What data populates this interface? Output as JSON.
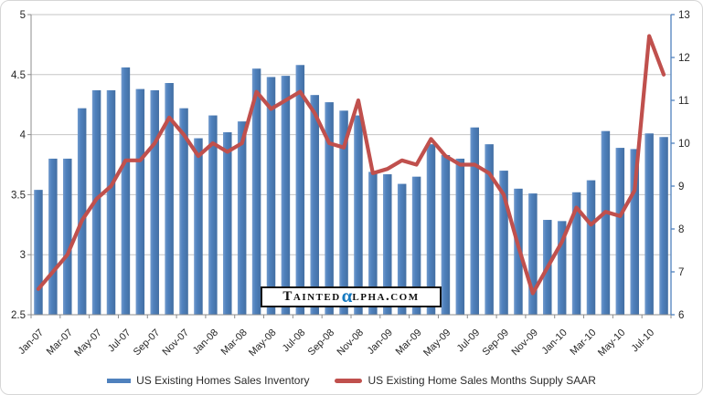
{
  "watermark": {
    "prefix": "Tainted",
    "alpha": "α",
    "suffix": "lpha.com"
  },
  "chart_data": {
    "type": "bar",
    "title": "",
    "xlabel": "",
    "ylabel": "",
    "grid": true,
    "legend_position": "bottom",
    "categories": [
      "Jan-07",
      "Feb-07",
      "Mar-07",
      "Apr-07",
      "May-07",
      "Jun-07",
      "Jul-07",
      "Aug-07",
      "Sep-07",
      "Oct-07",
      "Nov-07",
      "Dec-07",
      "Jan-08",
      "Feb-08",
      "Mar-08",
      "Apr-08",
      "May-08",
      "Jun-08",
      "Jul-08",
      "Aug-08",
      "Sep-08",
      "Oct-08",
      "Nov-08",
      "Dec-08",
      "Jan-09",
      "Feb-09",
      "Mar-09",
      "Apr-09",
      "May-09",
      "Jun-09",
      "Jul-09",
      "Aug-09",
      "Sep-09",
      "Oct-09",
      "Nov-09",
      "Dec-09",
      "Jan-10",
      "Feb-10",
      "Mar-10",
      "Apr-10",
      "May-10",
      "Jun-10",
      "Jul-10",
      "Aug-10"
    ],
    "x_tick_labels": [
      "Jan-07",
      "Mar-07",
      "May-07",
      "Jul-07",
      "Sep-07",
      "Nov-07",
      "Jan-08",
      "Mar-08",
      "May-08",
      "Jul-08",
      "Sep-08",
      "Nov-08",
      "Jan-09",
      "Mar-09",
      "May-09",
      "Jul-09",
      "Sep-09",
      "Nov-09",
      "Jan-10",
      "Mar-10",
      "May-10",
      "Jul-10"
    ],
    "x_tick_label_interval": 2,
    "series": [
      {
        "name": "US Existing Homes Sales Inventory",
        "type": "bar",
        "axis": "left",
        "color": "#4F81BD",
        "values": [
          3.54,
          3.8,
          3.8,
          4.22,
          4.37,
          4.37,
          4.56,
          4.38,
          4.37,
          4.43,
          4.22,
          3.97,
          4.16,
          4.02,
          4.11,
          4.55,
          4.48,
          4.49,
          4.58,
          4.33,
          4.27,
          4.2,
          4.16,
          3.69,
          3.67,
          3.59,
          3.65,
          3.92,
          3.83,
          3.8,
          4.06,
          3.92,
          3.7,
          3.55,
          3.51,
          3.29,
          3.28,
          3.52,
          3.62,
          4.03,
          3.89,
          3.88,
          4.01,
          3.98
        ]
      },
      {
        "name": "US Existing Home Sales Months Supply SAAR",
        "type": "line",
        "axis": "right",
        "color": "#C0504D",
        "values": [
          6.6,
          7.0,
          7.4,
          8.2,
          8.7,
          9.0,
          9.6,
          9.6,
          10.0,
          10.6,
          10.2,
          9.7,
          10.0,
          9.8,
          10.0,
          11.2,
          10.8,
          11.0,
          11.2,
          10.7,
          10.0,
          9.9,
          11.0,
          9.3,
          9.4,
          9.6,
          9.5,
          10.1,
          9.7,
          9.5,
          9.5,
          9.3,
          8.8,
          7.6,
          6.5,
          7.1,
          7.7,
          8.5,
          8.1,
          8.4,
          8.3,
          8.9,
          12.5,
          11.6
        ]
      }
    ],
    "left_axis": {
      "min": 2.5,
      "max": 5,
      "step": 0.5,
      "tick_labels": [
        "2.5",
        "3",
        "3.5",
        "4",
        "4.5",
        "5"
      ]
    },
    "right_axis": {
      "min": 6,
      "max": 13,
      "step": 1,
      "tick_labels": [
        "6",
        "7",
        "8",
        "9",
        "10",
        "11",
        "12",
        "13"
      ]
    },
    "colors": {
      "bar": "#4F81BD",
      "line": "#C0504D",
      "gridline": "#C6C6C6",
      "axis": "#8C8C8C",
      "right_axis": "#4F81BD",
      "tick_text": "#262626"
    }
  }
}
